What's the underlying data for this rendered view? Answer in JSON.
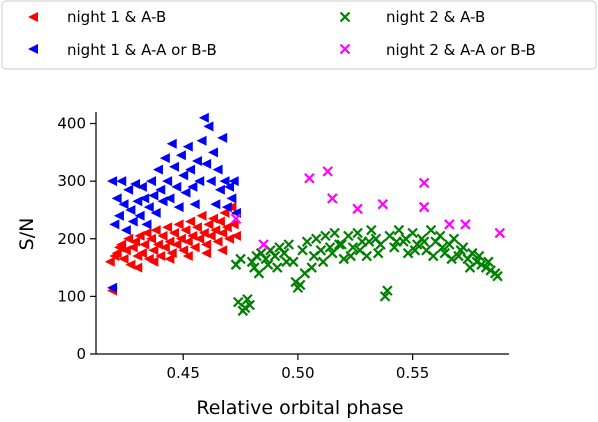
{
  "chart_data": {
    "type": "scatter",
    "title": "",
    "xlabel": "Relative orbital phase",
    "ylabel": "S/N",
    "xlim": [
      0.412,
      0.592
    ],
    "ylim": [
      0,
      420
    ],
    "x_ticks": [
      0.45,
      0.5,
      0.55
    ],
    "x_tick_labels": [
      "0.45",
      "0.50",
      "0.55"
    ],
    "y_ticks": [
      0,
      100,
      200,
      300,
      400
    ],
    "y_tick_labels": [
      "0",
      "100",
      "200",
      "300",
      "400"
    ],
    "grid": false,
    "legend_position": "top, two columns",
    "series": [
      {
        "name": "night 1 & A-B",
        "marker": "left-triangle",
        "color": "#ff0000",
        "points": [
          [
            0.419,
            110
          ],
          [
            0.42,
            170
          ],
          [
            0.418,
            160
          ],
          [
            0.421,
            175
          ],
          [
            0.423,
            190
          ],
          [
            0.424,
            165
          ],
          [
            0.425,
            180
          ],
          [
            0.426,
            200
          ],
          [
            0.427,
            155
          ],
          [
            0.428,
            185
          ],
          [
            0.429,
            195
          ],
          [
            0.43,
            170
          ],
          [
            0.431,
            205
          ],
          [
            0.432,
            175
          ],
          [
            0.433,
            190
          ],
          [
            0.434,
            210
          ],
          [
            0.435,
            165
          ],
          [
            0.436,
            200
          ],
          [
            0.437,
            180
          ],
          [
            0.438,
            215
          ],
          [
            0.439,
            190
          ],
          [
            0.44,
            170
          ],
          [
            0.441,
            205
          ],
          [
            0.442,
            185
          ],
          [
            0.443,
            220
          ],
          [
            0.444,
            195
          ],
          [
            0.445,
            175
          ],
          [
            0.446,
            210
          ],
          [
            0.447,
            190
          ],
          [
            0.448,
            225
          ],
          [
            0.449,
            200
          ],
          [
            0.45,
            180
          ],
          [
            0.451,
            215
          ],
          [
            0.452,
            195
          ],
          [
            0.453,
            230
          ],
          [
            0.454,
            205
          ],
          [
            0.455,
            185
          ],
          [
            0.456,
            220
          ],
          [
            0.457,
            200
          ],
          [
            0.458,
            240
          ],
          [
            0.459,
            210
          ],
          [
            0.46,
            190
          ],
          [
            0.461,
            225
          ],
          [
            0.462,
            205
          ],
          [
            0.463,
            235
          ],
          [
            0.464,
            215
          ],
          [
            0.465,
            195
          ],
          [
            0.466,
            230
          ],
          [
            0.467,
            210
          ],
          [
            0.468,
            245
          ],
          [
            0.469,
            220
          ],
          [
            0.47,
            200
          ],
          [
            0.471,
            255
          ],
          [
            0.472,
            225
          ],
          [
            0.473,
            205
          ],
          [
            0.43,
            150
          ],
          [
            0.437,
            160
          ],
          [
            0.444,
            165
          ],
          [
            0.452,
            170
          ],
          [
            0.46,
            175
          ],
          [
            0.467,
            180
          ],
          [
            0.422,
            185
          ]
        ]
      },
      {
        "name": "night 1 & A-A or B-B",
        "marker": "left-triangle",
        "color": "#0000ff",
        "points": [
          [
            0.419,
            115
          ],
          [
            0.419,
            300
          ],
          [
            0.42,
            225
          ],
          [
            0.421,
            270
          ],
          [
            0.422,
            240
          ],
          [
            0.423,
            300
          ],
          [
            0.424,
            260
          ],
          [
            0.425,
            215
          ],
          [
            0.426,
            285
          ],
          [
            0.427,
            250
          ],
          [
            0.428,
            230
          ],
          [
            0.429,
            295
          ],
          [
            0.43,
            265
          ],
          [
            0.431,
            240
          ],
          [
            0.432,
            290
          ],
          [
            0.433,
            270
          ],
          [
            0.434,
            225
          ],
          [
            0.435,
            255
          ],
          [
            0.436,
            300
          ],
          [
            0.437,
            275
          ],
          [
            0.438,
            245
          ],
          [
            0.439,
            320
          ],
          [
            0.44,
            285
          ],
          [
            0.441,
            265
          ],
          [
            0.442,
            340
          ],
          [
            0.443,
            300
          ],
          [
            0.444,
            270
          ],
          [
            0.445,
            365
          ],
          [
            0.446,
            325
          ],
          [
            0.447,
            290
          ],
          [
            0.448,
            255
          ],
          [
            0.449,
            345
          ],
          [
            0.45,
            310
          ],
          [
            0.451,
            280
          ],
          [
            0.452,
            360
          ],
          [
            0.453,
            320
          ],
          [
            0.454,
            290
          ],
          [
            0.455,
            260
          ],
          [
            0.456,
            335
          ],
          [
            0.457,
            300
          ],
          [
            0.458,
            370
          ],
          [
            0.459,
            410
          ],
          [
            0.46,
            330
          ],
          [
            0.461,
            395
          ],
          [
            0.462,
            300
          ],
          [
            0.463,
            350
          ],
          [
            0.464,
            260
          ],
          [
            0.465,
            320
          ],
          [
            0.466,
            285
          ],
          [
            0.467,
            375
          ],
          [
            0.468,
            300
          ],
          [
            0.469,
            255
          ],
          [
            0.47,
            290
          ],
          [
            0.471,
            270
          ],
          [
            0.472,
            300
          ],
          [
            0.473,
            245
          ]
        ]
      },
      {
        "name": "night 2 & A-B",
        "marker": "x",
        "color": "#008000",
        "points": [
          [
            0.473,
            155
          ],
          [
            0.474,
            90
          ],
          [
            0.475,
            165
          ],
          [
            0.476,
            75
          ],
          [
            0.477,
            80
          ],
          [
            0.478,
            95
          ],
          [
            0.479,
            85
          ],
          [
            0.48,
            160
          ],
          [
            0.481,
            150
          ],
          [
            0.482,
            170
          ],
          [
            0.484,
            175
          ],
          [
            0.486,
            165
          ],
          [
            0.488,
            180
          ],
          [
            0.49,
            170
          ],
          [
            0.492,
            185
          ],
          [
            0.494,
            175
          ],
          [
            0.496,
            190
          ],
          [
            0.498,
            160
          ],
          [
            0.499,
            125
          ],
          [
            0.5,
            115
          ],
          [
            0.501,
            120
          ],
          [
            0.502,
            180
          ],
          [
            0.504,
            195
          ],
          [
            0.506,
            150
          ],
          [
            0.508,
            200
          ],
          [
            0.51,
            180
          ],
          [
            0.512,
            205
          ],
          [
            0.514,
            185
          ],
          [
            0.516,
            210
          ],
          [
            0.518,
            190
          ],
          [
            0.52,
            165
          ],
          [
            0.522,
            205
          ],
          [
            0.524,
            185
          ],
          [
            0.526,
            210
          ],
          [
            0.528,
            195
          ],
          [
            0.53,
            170
          ],
          [
            0.532,
            215
          ],
          [
            0.534,
            200
          ],
          [
            0.536,
            190
          ],
          [
            0.538,
            100
          ],
          [
            0.539,
            110
          ],
          [
            0.54,
            205
          ],
          [
            0.542,
            185
          ],
          [
            0.544,
            215
          ],
          [
            0.546,
            195
          ],
          [
            0.548,
            175
          ],
          [
            0.55,
            210
          ],
          [
            0.552,
            190
          ],
          [
            0.554,
            200
          ],
          [
            0.556,
            180
          ],
          [
            0.558,
            215
          ],
          [
            0.56,
            195
          ],
          [
            0.562,
            205
          ],
          [
            0.564,
            175
          ],
          [
            0.566,
            190
          ],
          [
            0.568,
            200
          ],
          [
            0.57,
            170
          ],
          [
            0.572,
            185
          ],
          [
            0.574,
            165
          ],
          [
            0.576,
            175
          ],
          [
            0.578,
            160
          ],
          [
            0.58,
            155
          ],
          [
            0.582,
            150
          ],
          [
            0.584,
            145
          ],
          [
            0.586,
            140
          ],
          [
            0.587,
            135
          ],
          [
            0.483,
            140
          ],
          [
            0.487,
            155
          ],
          [
            0.491,
            150
          ],
          [
            0.495,
            160
          ],
          [
            0.503,
            140
          ],
          [
            0.507,
            170
          ],
          [
            0.511,
            160
          ],
          [
            0.515,
            175
          ],
          [
            0.519,
            190
          ],
          [
            0.523,
            170
          ],
          [
            0.527,
            180
          ],
          [
            0.531,
            195
          ],
          [
            0.535,
            175
          ],
          [
            0.543,
            195
          ],
          [
            0.547,
            200
          ],
          [
            0.551,
            180
          ],
          [
            0.555,
            195
          ],
          [
            0.559,
            170
          ],
          [
            0.563,
            185
          ],
          [
            0.567,
            165
          ],
          [
            0.571,
            180
          ],
          [
            0.575,
            150
          ],
          [
            0.579,
            170
          ],
          [
            0.583,
            160
          ]
        ]
      },
      {
        "name": "night 2 & A-A or B-B",
        "marker": "x",
        "color": "#ff00ff",
        "points": [
          [
            0.473,
            235
          ],
          [
            0.485,
            190
          ],
          [
            0.505,
            305
          ],
          [
            0.513,
            317
          ],
          [
            0.515,
            270
          ],
          [
            0.526,
            252
          ],
          [
            0.537,
            260
          ],
          [
            0.555,
            297
          ],
          [
            0.555,
            255
          ],
          [
            0.566,
            225
          ],
          [
            0.573,
            225
          ],
          [
            0.588,
            210
          ]
        ]
      }
    ]
  }
}
